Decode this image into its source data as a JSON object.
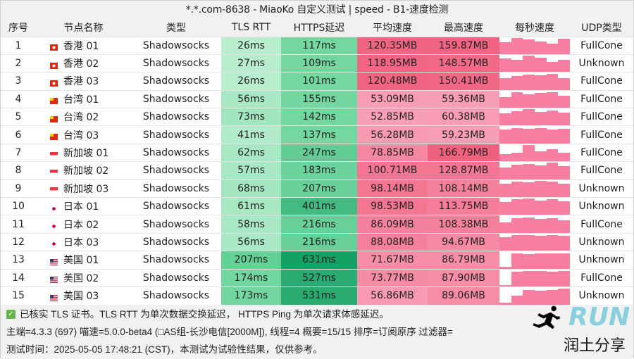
{
  "window": {
    "title": "*.*.com-8638 - MiaoKo 自定义测试 | speed - B1-速度检测"
  },
  "table": {
    "headers": [
      "序号",
      "节点名称",
      "类型",
      "TLS RTT",
      "HTTPS延迟",
      "平均速度",
      "最高速度",
      "每秒速度",
      "UDP类型"
    ],
    "rows": [
      {
        "idx": "1",
        "flag": "hk",
        "node": "香港 01",
        "type": "Shadowsocks",
        "tls": "26ms",
        "https": "117ms",
        "avg": "120.35MB",
        "max": "159.87MB",
        "udp": "FullCone",
        "profile": [
          0.7,
          0.95,
          0.85,
          0.75,
          0.6,
          0.9
        ]
      },
      {
        "idx": "2",
        "flag": "hk",
        "node": "香港 02",
        "type": "Shadowsocks",
        "tls": "27ms",
        "https": "109ms",
        "avg": "118.95MB",
        "max": "148.57MB",
        "udp": "Unknown",
        "profile": [
          0.8,
          0.7,
          0.95,
          0.85,
          0.6,
          0.7
        ]
      },
      {
        "idx": "3",
        "flag": "hk",
        "node": "香港 03",
        "type": "Shadowsocks",
        "tls": "26ms",
        "https": "101ms",
        "avg": "120.48MB",
        "max": "150.41MB",
        "udp": "FullCone",
        "profile": [
          0.7,
          0.8,
          0.9,
          0.85,
          0.95,
          0.7
        ]
      },
      {
        "idx": "4",
        "flag": "cn",
        "node": "台湾 01",
        "type": "Shadowsocks",
        "tls": "56ms",
        "https": "155ms",
        "avg": "53.09MB",
        "max": "59.36MB",
        "udp": "FullCone",
        "profile": [
          0.6,
          0.9,
          0.8,
          0.85,
          0.9,
          0.7
        ]
      },
      {
        "idx": "5",
        "flag": "cn",
        "node": "台湾 02",
        "type": "Shadowsocks",
        "tls": "73ms",
        "https": "142ms",
        "avg": "52.85MB",
        "max": "60.38MB",
        "udp": "FullCone",
        "profile": [
          0.7,
          0.85,
          0.95,
          0.8,
          0.9,
          0.75
        ]
      },
      {
        "idx": "6",
        "flag": "cn",
        "node": "台湾 03",
        "type": "Shadowsocks",
        "tls": "41ms",
        "https": "137ms",
        "avg": "56.28MB",
        "max": "59.23MB",
        "udp": "FullCone",
        "profile": [
          0.8,
          0.9,
          0.85,
          0.9,
          0.8,
          0.85
        ]
      },
      {
        "idx": "7",
        "flag": "sg",
        "node": "新加坡 01",
        "type": "Shadowsocks",
        "tls": "62ms",
        "https": "247ms",
        "avg": "78.85MB",
        "max": "166.79MB",
        "udp": "FullCone",
        "profile": [
          0.4,
          0.5,
          0.95,
          0.6,
          0.7,
          0.5
        ]
      },
      {
        "idx": "8",
        "flag": "sg",
        "node": "新加坡 02",
        "type": "Shadowsocks",
        "tls": "57ms",
        "https": "183ms",
        "avg": "100.71MB",
        "max": "128.87MB",
        "udp": "FullCone",
        "profile": [
          0.7,
          0.85,
          0.9,
          0.8,
          0.95,
          0.75
        ]
      },
      {
        "idx": "9",
        "flag": "sg",
        "node": "新加坡 03",
        "type": "Shadowsocks",
        "tls": "68ms",
        "https": "207ms",
        "avg": "98.14MB",
        "max": "108.14MB",
        "udp": "Unknown",
        "profile": [
          0.8,
          0.9,
          0.85,
          0.95,
          0.9,
          0.8
        ]
      },
      {
        "idx": "10",
        "flag": "jp",
        "node": "日本 01",
        "type": "Shadowsocks",
        "tls": "61ms",
        "https": "401ms",
        "avg": "98.53MB",
        "max": "113.75MB",
        "udp": "Unknown",
        "profile": [
          0.75,
          0.9,
          0.95,
          0.85,
          0.9,
          0.8
        ]
      },
      {
        "idx": "11",
        "flag": "jp",
        "node": "日本 02",
        "type": "Shadowsocks",
        "tls": "58ms",
        "https": "216ms",
        "avg": "86.09MB",
        "max": "108.38MB",
        "udp": "FullCone",
        "profile": [
          0.6,
          0.85,
          0.9,
          0.8,
          0.85,
          0.75
        ]
      },
      {
        "idx": "12",
        "flag": "jp",
        "node": "日本 03",
        "type": "Shadowsocks",
        "tls": "56ms",
        "https": "216ms",
        "avg": "88.08MB",
        "max": "94.67MB",
        "udp": "Unknown",
        "profile": [
          0.8,
          0.9,
          0.9,
          0.85,
          0.9,
          0.85
        ]
      },
      {
        "idx": "13",
        "flag": "us",
        "node": "美国 01",
        "type": "Shadowsocks",
        "tls": "207ms",
        "https": "631ms",
        "avg": "71.67MB",
        "max": "86.79MB",
        "udp": "Unknown",
        "profile": [
          0.1,
          0.9,
          0.85,
          0.9,
          0.9,
          0.9
        ]
      },
      {
        "idx": "14",
        "flag": "us",
        "node": "美国 02",
        "type": "Shadowsocks",
        "tls": "174ms",
        "https": "527ms",
        "avg": "73.77MB",
        "max": "87.90MB",
        "udp": "FullCone",
        "profile": [
          0.1,
          0.85,
          0.9,
          0.9,
          0.85,
          0.9
        ]
      },
      {
        "idx": "15",
        "flag": "us",
        "node": "美国 03",
        "type": "Shadowsocks",
        "tls": "173ms",
        "https": "531ms",
        "avg": "56.86MB",
        "max": "89.06MB",
        "udp": "Unknown",
        "profile": [
          0.1,
          0.5,
          0.85,
          0.8,
          0.85,
          0.9
        ]
      }
    ]
  },
  "watermark": {
    "logo_text": "RUN",
    "caption": "润土分享"
  },
  "footer": {
    "line1": "已核实 TLS 证书。TLS RTT 为单次数据交换延迟， HTTPS Ping 为单次请求体感延迟。",
    "line2": "主端=4.3.3 (697) 喵速=5.0.0-beta4 (□AS组-长沙电信[2000M]), 线程=4 概要=15/15 排序=订阅原序 过滤器=",
    "line3": "测试时间：2025-05-05 17:48:21 (CST)，本测试为试验性结果，仅供参考。"
  },
  "colors": {
    "tls_low": "#b8edce",
    "tls_high": "#5fd093",
    "https_low": "#74d7a0",
    "https_high": "#15a064",
    "speed_low": "#f8a0b8",
    "speed_high": "#f0607f",
    "spark": "#f77ea0"
  }
}
